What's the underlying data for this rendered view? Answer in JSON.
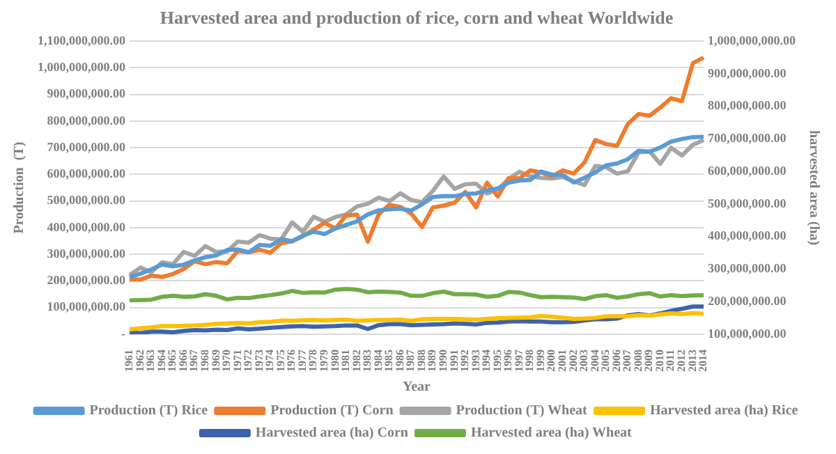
{
  "chart_data": {
    "type": "line",
    "title": "Harvested area and production of rice, corn and wheat Worldwide",
    "xlabel": "Year",
    "ylabel": "Production  (T)",
    "y2label": "harvested area (ha)",
    "categories": [
      "1961",
      "1962",
      "1963",
      "1964",
      "1965",
      "1966",
      "1967",
      "1968",
      "1969",
      "1970",
      "1971",
      "1972",
      "1973",
      "1974",
      "1975",
      "1976",
      "1977",
      "1978",
      "1979",
      "1980",
      "1981",
      "1982",
      "1983",
      "1984",
      "1985",
      "1986",
      "1987",
      "1988",
      "1989",
      "1990",
      "1991",
      "1992",
      "1993",
      "1994",
      "1995",
      "1996",
      "1997",
      "1998",
      "1999",
      "2000",
      "2001",
      "2002",
      "2003",
      "2004",
      "2005",
      "2006",
      "2007",
      "2008",
      "2009",
      "2010",
      "2011",
      "2012",
      "2013",
      "2014"
    ],
    "series": [
      {
        "name": "Production (T) Rice",
        "color": "#5b9bd5",
        "values": [
          215000000,
          227000000,
          243000000,
          262000000,
          255000000,
          261000000,
          277000000,
          289000000,
          296000000,
          316000000,
          318000000,
          308000000,
          335000000,
          332000000,
          357000000,
          349000000,
          370000000,
          385000000,
          376000000,
          397000000,
          410000000,
          424000000,
          450000000,
          465000000,
          469000000,
          471000000,
          464000000,
          488000000,
          515000000,
          519000000,
          518000000,
          527000000,
          529000000,
          540000000,
          547000000,
          569000000,
          577000000,
          579000000,
          611000000,
          599000000,
          598000000,
          570000000,
          587000000,
          608000000,
          634000000,
          641000000,
          657000000,
          689000000,
          685000000,
          701000000,
          723000000,
          733000000,
          740000000,
          741000000
        ]
      },
      {
        "name": "Production (T) Corn",
        "color": "#ed7d31",
        "values": [
          205000000,
          205000000,
          220000000,
          215000000,
          226000000,
          245000000,
          274000000,
          263000000,
          271000000,
          266000000,
          313000000,
          308000000,
          317000000,
          306000000,
          342000000,
          349000000,
          368000000,
          393000000,
          418000000,
          397000000,
          446000000,
          449000000,
          347000000,
          450000000,
          486000000,
          478000000,
          453000000,
          403000000,
          476000000,
          483000000,
          494000000,
          534000000,
          476000000,
          569000000,
          517000000,
          586000000,
          585000000,
          615000000,
          607000000,
          592000000,
          615000000,
          603000000,
          645000000,
          729000000,
          714000000,
          707000000,
          789000000,
          827000000,
          820000000,
          851000000,
          886000000,
          875000000,
          1017000000,
          1039000000
        ]
      },
      {
        "name": "Production (T) Wheat",
        "color": "#a5a5a5",
        "values": [
          222000000,
          250000000,
          233000000,
          270000000,
          263000000,
          309000000,
          294000000,
          331000000,
          309000000,
          311000000,
          348000000,
          344000000,
          372000000,
          359000000,
          356000000,
          420000000,
          384000000,
          441000000,
          422000000,
          440000000,
          450000000,
          480000000,
          490000000,
          513000000,
          500000000,
          529000000,
          504000000,
          496000000,
          538000000,
          592000000,
          546000000,
          563000000,
          565000000,
          528000000,
          543000000,
          583000000,
          610000000,
          593000000,
          587000000,
          585000000,
          590000000,
          574000000,
          560000000,
          632000000,
          627000000,
          603000000,
          612000000,
          683000000,
          687000000,
          640000000,
          700000000,
          671000000,
          711000000,
          729000000
        ]
      },
      {
        "name": "Harvested area (ha) Rice",
        "color": "#ffc000",
        "axis": "y2",
        "values": [
          115000000,
          118000000,
          121000000,
          125000000,
          125000000,
          126000000,
          127000000,
          129000000,
          132000000,
          133000000,
          135000000,
          133000000,
          137000000,
          138000000,
          142000000,
          141000000,
          143000000,
          144000000,
          142000000,
          144000000,
          145000000,
          141000000,
          143000000,
          144000000,
          144000000,
          145000000,
          141000000,
          146000000,
          147000000,
          147000000,
          147000000,
          146000000,
          145000000,
          147000000,
          149000000,
          150000000,
          151000000,
          152000000,
          156000000,
          154000000,
          151000000,
          147000000,
          148000000,
          150000000,
          155000000,
          155000000,
          155000000,
          159000000,
          158000000,
          161000000,
          164000000,
          162000000,
          165000000,
          163000000
        ]
      },
      {
        "name": "Harvested area (ha) Corn",
        "color": "#3e62ad",
        "axis": "y2",
        "values": [
          105000000,
          104000000,
          108000000,
          108000000,
          106000000,
          110000000,
          113000000,
          112000000,
          114000000,
          113000000,
          118000000,
          115000000,
          117000000,
          120000000,
          122000000,
          124000000,
          125000000,
          123000000,
          124000000,
          125000000,
          127000000,
          127000000,
          116000000,
          128000000,
          131000000,
          131000000,
          128000000,
          129000000,
          130000000,
          131000000,
          133000000,
          132000000,
          130000000,
          135000000,
          136000000,
          139000000,
          140000000,
          139000000,
          139000000,
          137000000,
          137000000,
          138000000,
          142000000,
          146000000,
          146000000,
          148000000,
          158000000,
          162000000,
          158000000,
          164000000,
          172000000,
          178000000,
          185000000,
          185000000
        ]
      },
      {
        "name": "Harvested area (ha) Wheat",
        "color": "#70ad47",
        "axis": "y2",
        "values": [
          204000000,
          205000000,
          206000000,
          215000000,
          218000000,
          215000000,
          216000000,
          223000000,
          218000000,
          207000000,
          212000000,
          211000000,
          216000000,
          220000000,
          225000000,
          233000000,
          227000000,
          229000000,
          228000000,
          237000000,
          239000000,
          237000000,
          229000000,
          231000000,
          230000000,
          228000000,
          218000000,
          218000000,
          226000000,
          231000000,
          223000000,
          223000000,
          222000000,
          215000000,
          218000000,
          230000000,
          228000000,
          220000000,
          214000000,
          215000000,
          214000000,
          213000000,
          208000000,
          217000000,
          220000000,
          212000000,
          216000000,
          223000000,
          226000000,
          216000000,
          220000000,
          217000000,
          219000000,
          220000000
        ]
      }
    ],
    "ylim": [
      0,
      1100000000
    ],
    "yticks": [
      {
        "value": 0,
        "label": "-"
      },
      {
        "value": 100000000,
        "label": "100,000,000.00"
      },
      {
        "value": 200000000,
        "label": "200,000,000.00"
      },
      {
        "value": 300000000,
        "label": "300,000,000.00"
      },
      {
        "value": 400000000,
        "label": "400,000,000.00"
      },
      {
        "value": 500000000,
        "label": "500,000,000.00"
      },
      {
        "value": 600000000,
        "label": "600,000,000.00"
      },
      {
        "value": 700000000,
        "label": "700,000,000.00"
      },
      {
        "value": 800000000,
        "label": "800,000,000.00"
      },
      {
        "value": 900000000,
        "label": "900,000,000.00"
      },
      {
        "value": 1000000000,
        "label": "1,000,000,000.00"
      },
      {
        "value": 1100000000,
        "label": "1,100,000,000.00"
      }
    ],
    "y2lim": [
      100000000,
      1000000000
    ],
    "y2ticks": [
      {
        "value": 100000000,
        "label": "100,000,000.00"
      },
      {
        "value": 200000000,
        "label": "200,000,000.00"
      },
      {
        "value": 300000000,
        "label": "300,000,000.00"
      },
      {
        "value": 400000000,
        "label": "400,000,000.00"
      },
      {
        "value": 500000000,
        "label": "500,000,000.00"
      },
      {
        "value": 600000000,
        "label": "600,000,000.00"
      },
      {
        "value": 700000000,
        "label": "700,000,000.00"
      },
      {
        "value": 800000000,
        "label": "800,000,000.00"
      },
      {
        "value": 900000000,
        "label": "900,000,000.00"
      },
      {
        "value": 1000000000,
        "label": "1,000,000,000.00"
      }
    ],
    "grid": "y",
    "legend": "bottom",
    "marker": "none",
    "line_style": "solid"
  }
}
